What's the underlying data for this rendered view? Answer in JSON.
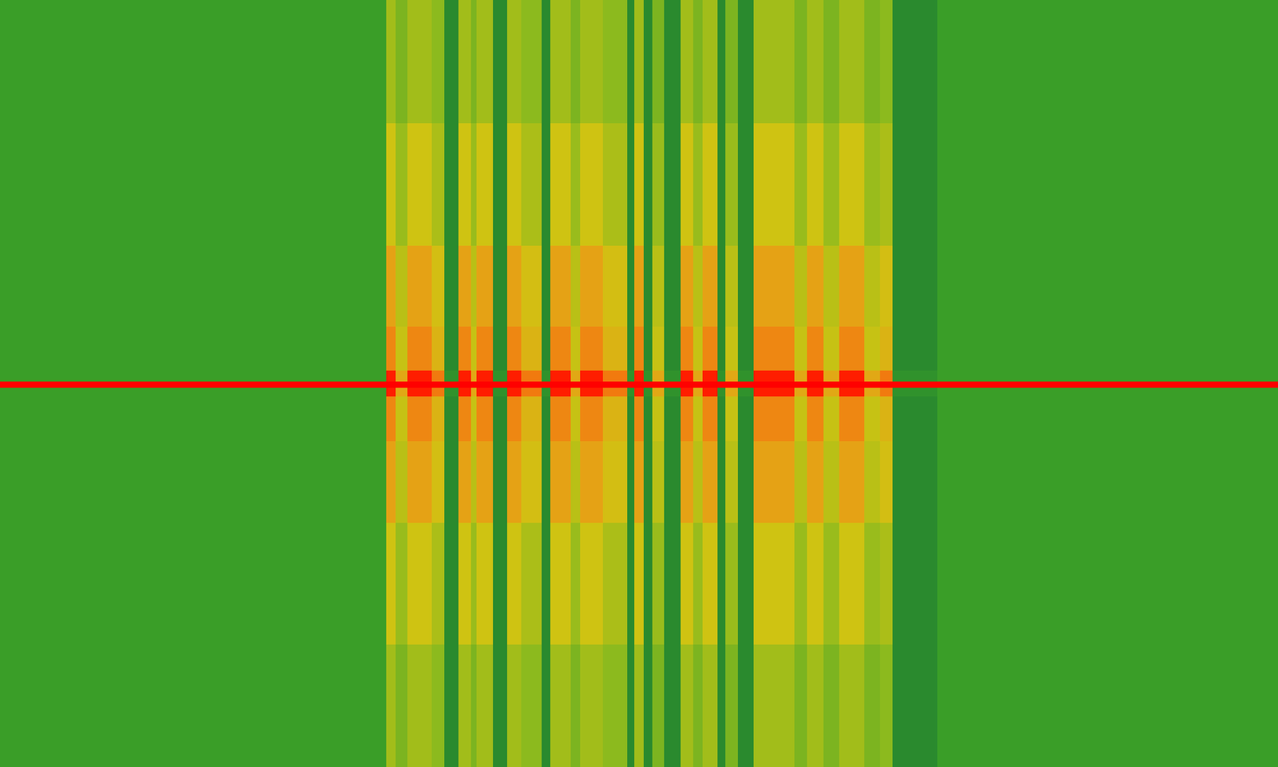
{
  "chart_data": {
    "type": "heatmap",
    "tick_labels": false,
    "grid": false,
    "xlim": [
      0,
      1568
    ],
    "ylim": [
      0,
      941
    ],
    "zlim": [
      0,
      1
    ],
    "x": [
      0,
      474,
      485,
      500,
      530,
      545,
      562,
      578,
      585,
      605,
      622,
      640,
      665,
      675,
      700,
      712,
      740,
      770,
      778,
      790,
      800,
      815,
      835,
      850,
      862,
      880,
      890,
      905,
      925,
      940,
      975,
      990,
      1010,
      1030,
      1060,
      1080,
      1095,
      1150,
      1568
    ],
    "y": [
      0,
      150,
      300,
      400,
      455,
      465,
      473,
      486,
      540,
      640,
      790,
      941
    ],
    "cells": [
      [
        0.3,
        0.3,
        0.3,
        0.3,
        0.3,
        1,
        0.3,
        0.3,
        0.3,
        0.3,
        0.3
      ],
      [
        0.5,
        0.6,
        0.72,
        0.78,
        0.95,
        1,
        0.95,
        0.78,
        0.72,
        0.6,
        0.5
      ],
      [
        0.42,
        0.48,
        0.55,
        0.58,
        0.7,
        1,
        0.7,
        0.58,
        0.55,
        0.48,
        0.42
      ],
      [
        0.5,
        0.6,
        0.72,
        0.78,
        0.95,
        1,
        0.95,
        0.78,
        0.72,
        0.6,
        0.5
      ],
      [
        0.45,
        0.52,
        0.62,
        0.66,
        0.8,
        1,
        0.8,
        0.66,
        0.62,
        0.52,
        0.45
      ],
      [
        0.22,
        0.22,
        0.22,
        0.22,
        0.25,
        1,
        0.25,
        0.22,
        0.22,
        0.22,
        0.22
      ],
      [
        0.5,
        0.6,
        0.72,
        0.78,
        0.95,
        1,
        0.95,
        0.78,
        0.72,
        0.6,
        0.5
      ],
      [
        0.42,
        0.48,
        0.55,
        0.58,
        0.7,
        1,
        0.7,
        0.58,
        0.55,
        0.48,
        0.42
      ],
      [
        0.5,
        0.6,
        0.72,
        0.78,
        0.95,
        1,
        0.95,
        0.78,
        0.72,
        0.6,
        0.5
      ],
      [
        0.22,
        0.22,
        0.22,
        0.22,
        0.25,
        1,
        0.25,
        0.22,
        0.22,
        0.22,
        0.22
      ],
      [
        0.5,
        0.6,
        0.72,
        0.78,
        0.95,
        1,
        0.95,
        0.78,
        0.72,
        0.6,
        0.5
      ],
      [
        0.45,
        0.52,
        0.62,
        0.66,
        0.8,
        1,
        0.8,
        0.66,
        0.62,
        0.52,
        0.45
      ],
      [
        0.22,
        0.22,
        0.22,
        0.22,
        0.25,
        1,
        0.25,
        0.22,
        0.22,
        0.22,
        0.22
      ],
      [
        0.5,
        0.6,
        0.72,
        0.78,
        0.95,
        1,
        0.95,
        0.78,
        0.72,
        0.6,
        0.5
      ],
      [
        0.42,
        0.48,
        0.55,
        0.58,
        0.7,
        1,
        0.7,
        0.58,
        0.55,
        0.48,
        0.42
      ],
      [
        0.5,
        0.6,
        0.72,
        0.78,
        0.95,
        1,
        0.95,
        0.78,
        0.72,
        0.6,
        0.5
      ],
      [
        0.45,
        0.52,
        0.62,
        0.66,
        0.8,
        1,
        0.8,
        0.66,
        0.62,
        0.52,
        0.45
      ],
      [
        0.22,
        0.22,
        0.22,
        0.22,
        0.25,
        1,
        0.25,
        0.22,
        0.22,
        0.22,
        0.22
      ],
      [
        0.5,
        0.6,
        0.72,
        0.78,
        0.95,
        1,
        0.95,
        0.78,
        0.72,
        0.6,
        0.5
      ],
      [
        0.22,
        0.22,
        0.22,
        0.22,
        0.25,
        1,
        0.25,
        0.22,
        0.22,
        0.22,
        0.22
      ],
      [
        0.42,
        0.48,
        0.55,
        0.58,
        0.7,
        1,
        0.7,
        0.58,
        0.55,
        0.48,
        0.42
      ],
      [
        0.22,
        0.22,
        0.22,
        0.22,
        0.25,
        1,
        0.25,
        0.22,
        0.22,
        0.22,
        0.22
      ],
      [
        0.5,
        0.6,
        0.72,
        0.78,
        0.95,
        1,
        0.95,
        0.78,
        0.72,
        0.6,
        0.5
      ],
      [
        0.42,
        0.48,
        0.55,
        0.58,
        0.7,
        1,
        0.7,
        0.58,
        0.55,
        0.48,
        0.42
      ],
      [
        0.5,
        0.6,
        0.72,
        0.78,
        0.95,
        1,
        0.95,
        0.78,
        0.72,
        0.6,
        0.5
      ],
      [
        0.22,
        0.22,
        0.22,
        0.22,
        0.25,
        1,
        0.25,
        0.22,
        0.22,
        0.22,
        0.22
      ],
      [
        0.42,
        0.48,
        0.55,
        0.58,
        0.7,
        1,
        0.7,
        0.58,
        0.55,
        0.48,
        0.42
      ],
      [
        0.22,
        0.22,
        0.22,
        0.22,
        0.25,
        1,
        0.25,
        0.22,
        0.22,
        0.22,
        0.22
      ],
      [
        0.5,
        0.6,
        0.72,
        0.78,
        0.95,
        1,
        0.95,
        0.78,
        0.72,
        0.6,
        0.5
      ],
      [
        0.5,
        0.6,
        0.72,
        0.78,
        0.95,
        1,
        0.95,
        0.78,
        0.72,
        0.6,
        0.5
      ],
      [
        0.42,
        0.48,
        0.55,
        0.58,
        0.7,
        1,
        0.7,
        0.58,
        0.55,
        0.48,
        0.42
      ],
      [
        0.5,
        0.6,
        0.72,
        0.78,
        0.95,
        1,
        0.95,
        0.78,
        0.72,
        0.6,
        0.5
      ],
      [
        0.42,
        0.48,
        0.55,
        0.58,
        0.7,
        1,
        0.7,
        0.58,
        0.55,
        0.48,
        0.42
      ],
      [
        0.5,
        0.6,
        0.72,
        0.78,
        0.95,
        1,
        0.95,
        0.78,
        0.72,
        0.6,
        0.5
      ],
      [
        0.42,
        0.48,
        0.55,
        0.58,
        0.7,
        1,
        0.7,
        0.58,
        0.55,
        0.48,
        0.42
      ],
      [
        0.45,
        0.52,
        0.62,
        0.66,
        0.8,
        1,
        0.8,
        0.66,
        0.62,
        0.52,
        0.45
      ],
      [
        0.22,
        0.22,
        0.22,
        0.22,
        0.25,
        1,
        0.25,
        0.22,
        0.22,
        0.22,
        0.22
      ],
      [
        0.3,
        0.3,
        0.3,
        0.3,
        0.3,
        1,
        0.3,
        0.3,
        0.3,
        0.3,
        0.3
      ]
    ]
  }
}
